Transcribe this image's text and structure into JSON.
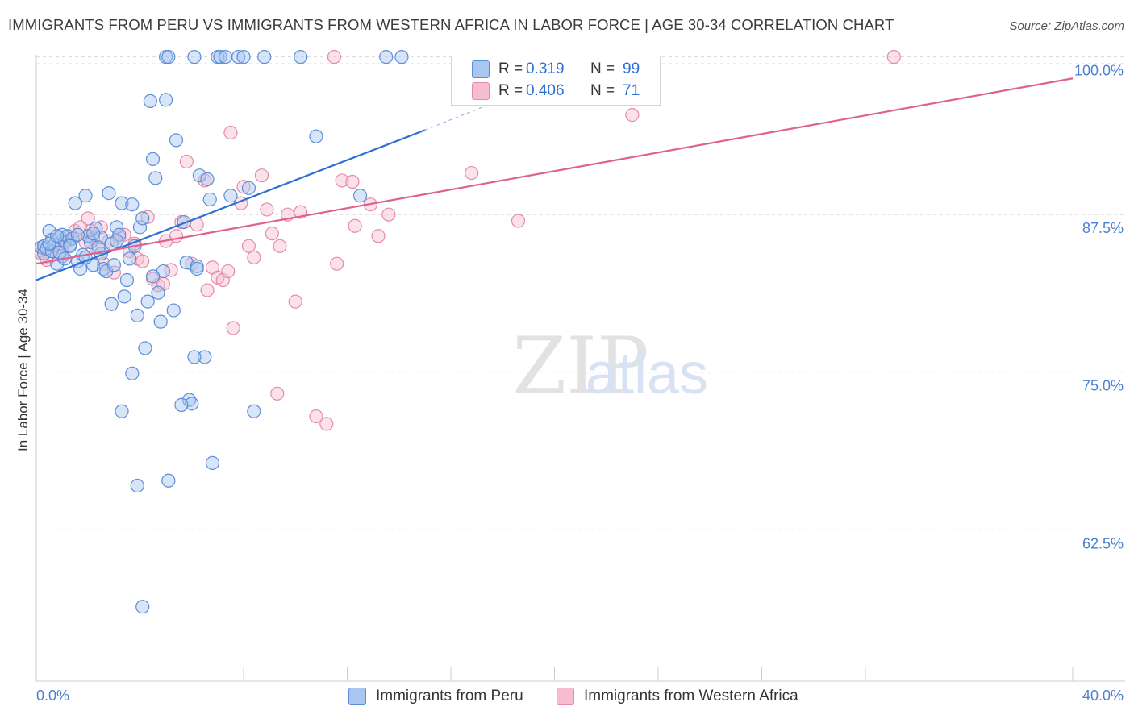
{
  "title": "IMMIGRANTS FROM PERU VS IMMIGRANTS FROM WESTERN AFRICA IN LABOR FORCE | AGE 30-34 CORRELATION CHART",
  "source": "Source: ZipAtlas.com",
  "watermark": {
    "zip": "ZIP",
    "atlas": "atlas"
  },
  "legend_stats": [
    {
      "r_label": "R =",
      "r_value": "0.319",
      "n_label": "N =",
      "n_value": "99"
    },
    {
      "r_label": "R =",
      "r_value": "0.406",
      "n_label": "N =",
      "n_value": "71"
    }
  ],
  "colors": {
    "peru_fill": "#a9c6f0",
    "peru_stroke": "#5b8fd8",
    "peru_line": "#2e6fd6",
    "wafrica_fill": "#f6bcd0",
    "wafrica_stroke": "#e68aaa",
    "wafrica_line": "#e0628c",
    "axis_tick_label": "#4a7fd4",
    "grid": "#d9d9d9"
  },
  "chart_data": {
    "type": "scatter",
    "title": "IMMIGRANTS FROM PERU VS IMMIGRANTS FROM WESTERN AFRICA IN LABOR FORCE | AGE 30-34 CORRELATION CHART",
    "xlabel": "",
    "ylabel": "In Labor Force | Age 30-34",
    "xlim": [
      0,
      40
    ],
    "ylim": [
      50.5,
      101
    ],
    "x_tick_labels": [
      "0.0%",
      "40.0%"
    ],
    "y_ticks": [
      62.5,
      75.0,
      87.5,
      100.0
    ],
    "y_tick_labels": [
      "62.5%",
      "75.0%",
      "87.5%",
      "100.0%"
    ],
    "grid": true,
    "series": [
      {
        "name": "Immigrants from Peru",
        "r": 0.319,
        "n": 99,
        "trend": {
          "x0": 0,
          "y0": 82.3,
          "x1": 15.0,
          "y1": 94.2,
          "dashed_to_x": 20.0,
          "dashed_to_y": 98.3
        },
        "points": [
          [
            0.2,
            84.9
          ],
          [
            0.3,
            85.0
          ],
          [
            0.3,
            84.4
          ],
          [
            0.4,
            84.8
          ],
          [
            0.5,
            86.2
          ],
          [
            0.6,
            85.5
          ],
          [
            0.6,
            84.6
          ],
          [
            0.7,
            85.1
          ],
          [
            0.8,
            83.6
          ],
          [
            0.9,
            85.7
          ],
          [
            1.0,
            84.2
          ],
          [
            1.0,
            85.9
          ],
          [
            1.1,
            85.3
          ],
          [
            1.2,
            85.8
          ],
          [
            1.3,
            85.1
          ],
          [
            1.4,
            85.6
          ],
          [
            1.5,
            88.4
          ],
          [
            1.6,
            83.8
          ],
          [
            1.7,
            83.2
          ],
          [
            1.8,
            84.3
          ],
          [
            1.9,
            89.0
          ],
          [
            2.0,
            85.8
          ],
          [
            2.1,
            85.3
          ],
          [
            2.2,
            83.5
          ],
          [
            2.3,
            86.4
          ],
          [
            2.5,
            85.7
          ],
          [
            2.5,
            84.4
          ],
          [
            2.6,
            83.2
          ],
          [
            2.7,
            83.0
          ],
          [
            2.8,
            89.2
          ],
          [
            2.9,
            80.4
          ],
          [
            3.0,
            83.5
          ],
          [
            3.1,
            86.5
          ],
          [
            3.2,
            85.9
          ],
          [
            3.3,
            88.4
          ],
          [
            3.4,
            81.0
          ],
          [
            3.5,
            82.3
          ],
          [
            3.6,
            84.0
          ],
          [
            3.7,
            88.3
          ],
          [
            3.8,
            85.0
          ],
          [
            3.9,
            79.5
          ],
          [
            4.0,
            86.5
          ],
          [
            4.1,
            87.2
          ],
          [
            4.2,
            76.9
          ],
          [
            4.3,
            80.6
          ],
          [
            4.4,
            96.5
          ],
          [
            4.5,
            91.9
          ],
          [
            4.6,
            90.4
          ],
          [
            4.7,
            81.3
          ],
          [
            4.8,
            79.0
          ],
          [
            4.9,
            83.0
          ],
          [
            5.0,
            96.6
          ],
          [
            5.0,
            100.0
          ],
          [
            5.1,
            100.0
          ],
          [
            5.3,
            79.9
          ],
          [
            5.4,
            93.4
          ],
          [
            5.7,
            86.9
          ],
          [
            5.8,
            83.7
          ],
          [
            5.9,
            72.8
          ],
          [
            6.0,
            72.5
          ],
          [
            6.2,
            83.4
          ],
          [
            6.2,
            83.2
          ],
          [
            6.1,
            100.0
          ],
          [
            6.3,
            90.6
          ],
          [
            6.5,
            76.2
          ],
          [
            6.6,
            90.3
          ],
          [
            6.7,
            88.7
          ],
          [
            6.8,
            67.8
          ],
          [
            7.0,
            100.0
          ],
          [
            7.1,
            100.0
          ],
          [
            7.3,
            100.0
          ],
          [
            7.5,
            89.0
          ],
          [
            7.8,
            100.0
          ],
          [
            8.0,
            100.0
          ],
          [
            8.2,
            89.6
          ],
          [
            8.4,
            71.9
          ],
          [
            8.8,
            100.0
          ],
          [
            10.2,
            100.0
          ],
          [
            10.8,
            93.7
          ],
          [
            12.5,
            89.0
          ],
          [
            13.5,
            100.0
          ],
          [
            14.1,
            100.0
          ],
          [
            5.1,
            66.4
          ],
          [
            6.1,
            76.2
          ],
          [
            5.6,
            72.4
          ],
          [
            3.9,
            66.0
          ],
          [
            3.3,
            71.9
          ],
          [
            4.1,
            56.4
          ],
          [
            3.7,
            74.9
          ],
          [
            4.5,
            82.6
          ],
          [
            2.9,
            85.2
          ],
          [
            1.6,
            85.9
          ],
          [
            0.9,
            84.5
          ],
          [
            1.9,
            84.1
          ],
          [
            2.4,
            84.9
          ],
          [
            0.5,
            85.2
          ],
          [
            1.3,
            85.0
          ],
          [
            2.2,
            86.0
          ],
          [
            3.1,
            85.4
          ],
          [
            0.8,
            85.8
          ],
          [
            1.1,
            84.0
          ]
        ]
      },
      {
        "name": "Immigrants from Western Africa",
        "r": 0.406,
        "n": 71,
        "trend": {
          "x0": 0,
          "y0": 83.6,
          "x1": 40.0,
          "y1": 98.3
        },
        "points": [
          [
            0.2,
            84.4
          ],
          [
            0.3,
            84.8
          ],
          [
            0.5,
            84.1
          ],
          [
            0.7,
            85.1
          ],
          [
            0.9,
            84.9
          ],
          [
            1.1,
            85.7
          ],
          [
            1.3,
            85.5
          ],
          [
            1.5,
            86.2
          ],
          [
            1.7,
            86.5
          ],
          [
            1.9,
            85.3
          ],
          [
            2.0,
            87.2
          ],
          [
            2.1,
            86.2
          ],
          [
            2.2,
            85.6
          ],
          [
            2.3,
            84.9
          ],
          [
            2.5,
            86.5
          ],
          [
            2.6,
            83.6
          ],
          [
            2.8,
            85.4
          ],
          [
            3.0,
            82.9
          ],
          [
            3.2,
            85.7
          ],
          [
            3.4,
            85.9
          ],
          [
            3.6,
            84.6
          ],
          [
            3.8,
            85.2
          ],
          [
            3.9,
            84.0
          ],
          [
            4.1,
            83.8
          ],
          [
            4.3,
            87.3
          ],
          [
            4.5,
            82.4
          ],
          [
            4.7,
            81.9
          ],
          [
            4.9,
            82.0
          ],
          [
            5.0,
            85.4
          ],
          [
            5.2,
            83.1
          ],
          [
            5.4,
            85.8
          ],
          [
            5.6,
            86.9
          ],
          [
            5.8,
            91.7
          ],
          [
            6.0,
            83.6
          ],
          [
            6.2,
            86.7
          ],
          [
            6.5,
            90.2
          ],
          [
            6.6,
            81.5
          ],
          [
            6.8,
            83.3
          ],
          [
            7.0,
            82.5
          ],
          [
            7.2,
            82.3
          ],
          [
            7.4,
            83.0
          ],
          [
            7.5,
            94.0
          ],
          [
            7.6,
            78.5
          ],
          [
            7.9,
            88.4
          ],
          [
            8.0,
            89.7
          ],
          [
            8.2,
            85.0
          ],
          [
            8.4,
            84.1
          ],
          [
            8.7,
            90.6
          ],
          [
            8.9,
            87.9
          ],
          [
            9.1,
            86.0
          ],
          [
            9.3,
            73.3
          ],
          [
            9.4,
            85.0
          ],
          [
            9.7,
            87.5
          ],
          [
            10.2,
            87.7
          ],
          [
            10.0,
            80.6
          ],
          [
            10.8,
            71.5
          ],
          [
            11.2,
            70.9
          ],
          [
            11.5,
            100.0
          ],
          [
            11.6,
            83.6
          ],
          [
            11.8,
            90.2
          ],
          [
            12.2,
            90.1
          ],
          [
            12.3,
            86.6
          ],
          [
            12.9,
            88.3
          ],
          [
            13.2,
            85.8
          ],
          [
            13.6,
            87.5
          ],
          [
            16.8,
            90.8
          ],
          [
            18.6,
            87.0
          ],
          [
            23.0,
            95.4
          ],
          [
            33.1,
            100.0
          ],
          [
            1.0,
            84.6
          ],
          [
            0.4,
            83.9
          ]
        ]
      }
    ]
  },
  "legend": [
    {
      "label": "Immigrants from Peru"
    },
    {
      "label": "Immigrants from Western Africa"
    }
  ]
}
